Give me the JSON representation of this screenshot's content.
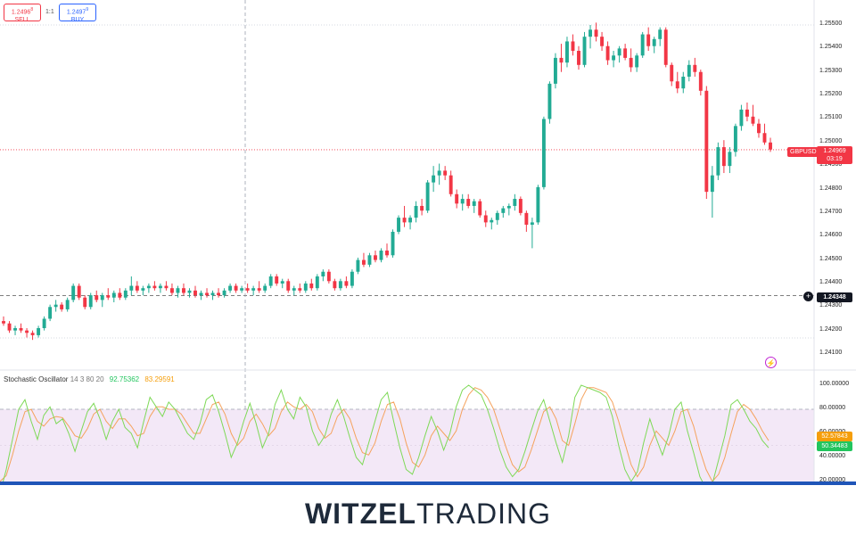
{
  "trade": {
    "sell_price": "1.2496",
    "sell_sup": "8",
    "sell_label": "SELL",
    "ratio": "1:1",
    "buy_price": "1.2497",
    "buy_sup": "9",
    "buy_label": "BUY"
  },
  "price_axis": {
    "labels": [
      "1.25500",
      "1.25400",
      "1.25300",
      "1.25200",
      "1.25100",
      "1.25000",
      "1.24900",
      "1.24800",
      "1.24700",
      "1.24600",
      "1.24500",
      "1.24400",
      "1.24300",
      "1.24200",
      "1.24100"
    ],
    "symbol": "GBPUSD",
    "current_price": "1.24969",
    "countdown": "03:19",
    "crosshair_price": "1.24348",
    "add_symbol": "+"
  },
  "stochastic": {
    "title": "Stochastic Oscillator",
    "params": "14 3 80 20",
    "k_value": "92.75362",
    "d_value": "83.29591",
    "axis_labels": [
      "100.00000",
      "80.00000",
      "60.00000",
      "40.00000",
      "20.00000"
    ],
    "tag_k": "52.57843",
    "tag_d": "50.34483"
  },
  "colors": {
    "up": "#22ab94",
    "down": "#f23645",
    "k_line": "#7ed957",
    "d_line": "#f5a25d",
    "band": "#f3e8f7",
    "accent": "#1f55b8"
  },
  "icons": {
    "lightning": "lightning-icon",
    "plus": "plus-icon"
  },
  "footer": {
    "brand_bold": "WITZEL",
    "brand_light": "TRADING"
  },
  "chart_data": {
    "type": "candlestick",
    "ylim": [
      1.2405,
      1.2555
    ],
    "candles": [
      [
        1.2424,
        1.2426,
        1.2422,
        1.2423
      ],
      [
        1.2423,
        1.2424,
        1.2419,
        1.242
      ],
      [
        1.242,
        1.2422,
        1.2418,
        1.2421
      ],
      [
        1.2421,
        1.2423,
        1.2419,
        1.242
      ],
      [
        1.242,
        1.2421,
        1.2417,
        1.2419
      ],
      [
        1.2419,
        1.242,
        1.2416,
        1.2418
      ],
      [
        1.2418,
        1.2422,
        1.2417,
        1.2421
      ],
      [
        1.2421,
        1.2426,
        1.242,
        1.2425
      ],
      [
        1.2425,
        1.2431,
        1.2424,
        1.243
      ],
      [
        1.243,
        1.2433,
        1.2428,
        1.2431
      ],
      [
        1.2431,
        1.2432,
        1.2428,
        1.2429
      ],
      [
        1.2429,
        1.2434,
        1.2428,
        1.2433
      ],
      [
        1.2433,
        1.244,
        1.2432,
        1.2439
      ],
      [
        1.2439,
        1.244,
        1.2433,
        1.2434
      ],
      [
        1.2434,
        1.2435,
        1.2429,
        1.243
      ],
      [
        1.243,
        1.2436,
        1.2429,
        1.2435
      ],
      [
        1.2435,
        1.2437,
        1.2432,
        1.2433
      ],
      [
        1.2433,
        1.2436,
        1.243,
        1.2435
      ],
      [
        1.2435,
        1.2438,
        1.2433,
        1.2434
      ],
      [
        1.2434,
        1.2437,
        1.2432,
        1.2436
      ],
      [
        1.2436,
        1.2438,
        1.2433,
        1.2434
      ],
      [
        1.2434,
        1.2438,
        1.2433,
        1.2437
      ],
      [
        1.2437,
        1.2443,
        1.2435,
        1.2439
      ],
      [
        1.2439,
        1.2441,
        1.2436,
        1.2437
      ],
      [
        1.2437,
        1.2439,
        1.2435,
        1.2438
      ],
      [
        1.2438,
        1.244,
        1.2436,
        1.2439
      ],
      [
        1.2439,
        1.2441,
        1.2437,
        1.2438
      ],
      [
        1.2438,
        1.244,
        1.2436,
        1.2439
      ],
      [
        1.2439,
        1.2441,
        1.2437,
        1.2438
      ],
      [
        1.2438,
        1.244,
        1.2435,
        1.2436
      ],
      [
        1.2436,
        1.2439,
        1.2434,
        1.2438
      ],
      [
        1.2438,
        1.244,
        1.2435,
        1.2436
      ],
      [
        1.2436,
        1.2438,
        1.2434,
        1.2437
      ],
      [
        1.2437,
        1.2439,
        1.2434,
        1.2435
      ],
      [
        1.2435,
        1.2437,
        1.2433,
        1.2436
      ],
      [
        1.2436,
        1.2438,
        1.2434,
        1.2435
      ],
      [
        1.2435,
        1.2437,
        1.2433,
        1.2436
      ],
      [
        1.2436,
        1.2438,
        1.2434,
        1.2435
      ],
      [
        1.2435,
        1.2438,
        1.2434,
        1.2437
      ],
      [
        1.2437,
        1.244,
        1.2436,
        1.2439
      ],
      [
        1.2439,
        1.244,
        1.2436,
        1.2437
      ],
      [
        1.2437,
        1.2439,
        1.2436,
        1.2438
      ],
      [
        1.2438,
        1.244,
        1.2436,
        1.2437
      ],
      [
        1.2437,
        1.2439,
        1.2435,
        1.2438
      ],
      [
        1.2438,
        1.2441,
        1.2436,
        1.2437
      ],
      [
        1.2437,
        1.244,
        1.2436,
        1.2439
      ],
      [
        1.2439,
        1.2444,
        1.2438,
        1.2443
      ],
      [
        1.2443,
        1.2444,
        1.2439,
        1.244
      ],
      [
        1.244,
        1.2442,
        1.2438,
        1.2441
      ],
      [
        1.2441,
        1.2442,
        1.2436,
        1.2437
      ],
      [
        1.2437,
        1.2439,
        1.2435,
        1.2438
      ],
      [
        1.2438,
        1.244,
        1.2436,
        1.2437
      ],
      [
        1.2437,
        1.2441,
        1.2436,
        1.244
      ],
      [
        1.244,
        1.2442,
        1.2437,
        1.2438
      ],
      [
        1.2438,
        1.2444,
        1.2437,
        1.2443
      ],
      [
        1.2443,
        1.2446,
        1.2441,
        1.2445
      ],
      [
        1.2445,
        1.2446,
        1.244,
        1.2441
      ],
      [
        1.2441,
        1.2442,
        1.2437,
        1.2438
      ],
      [
        1.2438,
        1.2442,
        1.2437,
        1.2441
      ],
      [
        1.2441,
        1.2443,
        1.2438,
        1.2439
      ],
      [
        1.2439,
        1.2446,
        1.2438,
        1.2445
      ],
      [
        1.2445,
        1.2451,
        1.2444,
        1.245
      ],
      [
        1.245,
        1.2453,
        1.2447,
        1.2448
      ],
      [
        1.2448,
        1.2453,
        1.2447,
        1.2452
      ],
      [
        1.2452,
        1.2454,
        1.2449,
        1.245
      ],
      [
        1.245,
        1.2455,
        1.2449,
        1.2454
      ],
      [
        1.2454,
        1.2457,
        1.2451,
        1.2452
      ],
      [
        1.2452,
        1.2463,
        1.2451,
        1.2462
      ],
      [
        1.2462,
        1.2469,
        1.2461,
        1.2468
      ],
      [
        1.2468,
        1.2473,
        1.2464,
        1.2466
      ],
      [
        1.2466,
        1.2469,
        1.2463,
        1.2468
      ],
      [
        1.2468,
        1.2475,
        1.2466,
        1.2473
      ],
      [
        1.2473,
        1.2476,
        1.2469,
        1.2471
      ],
      [
        1.2471,
        1.2484,
        1.247,
        1.2483
      ],
      [
        1.2483,
        1.249,
        1.2479,
        1.2486
      ],
      [
        1.2486,
        1.2491,
        1.2482,
        1.2488
      ],
      [
        1.2488,
        1.249,
        1.2484,
        1.2486
      ],
      [
        1.2486,
        1.2488,
        1.2477,
        1.2478
      ],
      [
        1.2478,
        1.248,
        1.2472,
        1.2474
      ],
      [
        1.2474,
        1.2478,
        1.2471,
        1.2476
      ],
      [
        1.2476,
        1.2478,
        1.2472,
        1.2473
      ],
      [
        1.2473,
        1.2476,
        1.247,
        1.2475
      ],
      [
        1.2475,
        1.2476,
        1.2468,
        1.2469
      ],
      [
        1.2469,
        1.2471,
        1.2464,
        1.2466
      ],
      [
        1.2466,
        1.2468,
        1.2463,
        1.2467
      ],
      [
        1.2467,
        1.2471,
        1.2465,
        1.247
      ],
      [
        1.247,
        1.2473,
        1.2468,
        1.2472
      ],
      [
        1.2472,
        1.2474,
        1.2469,
        1.2473
      ],
      [
        1.2473,
        1.2478,
        1.2471,
        1.2476
      ],
      [
        1.2476,
        1.2477,
        1.2469,
        1.247
      ],
      [
        1.247,
        1.2471,
        1.2462,
        1.2465
      ],
      [
        1.2465,
        1.2468,
        1.2455,
        1.2466
      ],
      [
        1.2466,
        1.2482,
        1.2465,
        1.2481
      ],
      [
        1.2481,
        1.2511,
        1.248,
        1.251
      ],
      [
        1.251,
        1.2526,
        1.2508,
        1.2525
      ],
      [
        1.2525,
        1.2538,
        1.2523,
        1.2536
      ],
      [
        1.2536,
        1.2542,
        1.253,
        1.2534
      ],
      [
        1.2534,
        1.2545,
        1.2532,
        1.2543
      ],
      [
        1.2543,
        1.2546,
        1.2537,
        1.2539
      ],
      [
        1.2539,
        1.2541,
        1.2531,
        1.2533
      ],
      [
        1.2533,
        1.2547,
        1.2532,
        1.2545
      ],
      [
        1.2545,
        1.255,
        1.254,
        1.2548
      ],
      [
        1.2548,
        1.2551,
        1.2543,
        1.2545
      ],
      [
        1.2545,
        1.2547,
        1.2539,
        1.2541
      ],
      [
        1.2541,
        1.2543,
        1.2533,
        1.2535
      ],
      [
        1.2535,
        1.2539,
        1.2532,
        1.2537
      ],
      [
        1.2537,
        1.2541,
        1.2534,
        1.254
      ],
      [
        1.254,
        1.2542,
        1.2535,
        1.2536
      ],
      [
        1.2536,
        1.254,
        1.253,
        1.2532
      ],
      [
        1.2532,
        1.2538,
        1.253,
        1.2537
      ],
      [
        1.2537,
        1.2547,
        1.2536,
        1.2546
      ],
      [
        1.2546,
        1.2549,
        1.2539,
        1.2541
      ],
      [
        1.2541,
        1.2545,
        1.2538,
        1.2544
      ],
      [
        1.2544,
        1.2549,
        1.2541,
        1.2548
      ],
      [
        1.2548,
        1.2549,
        1.2532,
        1.2533
      ],
      [
        1.2533,
        1.2534,
        1.2524,
        1.2526
      ],
      [
        1.2526,
        1.253,
        1.2521,
        1.2523
      ],
      [
        1.2523,
        1.253,
        1.2521,
        1.2528
      ],
      [
        1.2528,
        1.2535,
        1.2526,
        1.2533
      ],
      [
        1.2533,
        1.2536,
        1.2528,
        1.253
      ],
      [
        1.253,
        1.2531,
        1.252,
        1.2522
      ],
      [
        1.2522,
        1.2524,
        1.2476,
        1.2479
      ],
      [
        1.2479,
        1.249,
        1.2468,
        1.2486
      ],
      [
        1.2486,
        1.25,
        1.2484,
        1.2498
      ],
      [
        1.2498,
        1.2501,
        1.2487,
        1.249
      ],
      [
        1.249,
        1.2498,
        1.2487,
        1.2496
      ],
      [
        1.2496,
        1.2508,
        1.2494,
        1.2507
      ],
      [
        1.2507,
        1.2516,
        1.2505,
        1.2514
      ],
      [
        1.2514,
        1.2517,
        1.2509,
        1.2511
      ],
      [
        1.2511,
        1.2516,
        1.2507,
        1.2508
      ],
      [
        1.2508,
        1.251,
        1.2502,
        1.2504
      ],
      [
        1.2504,
        1.2508,
        1.2499,
        1.25
      ],
      [
        1.25,
        1.2502,
        1.2496,
        1.2497
      ]
    ],
    "stoch_k": [
      10,
      30,
      55,
      80,
      88,
      70,
      55,
      75,
      82,
      68,
      72,
      60,
      45,
      62,
      78,
      85,
      72,
      55,
      70,
      80,
      65,
      60,
      48,
      70,
      90,
      82,
      74,
      86,
      80,
      70,
      60,
      55,
      68,
      88,
      92,
      78,
      60,
      40,
      52,
      70,
      85,
      68,
      48,
      60,
      84,
      96,
      80,
      72,
      90,
      82,
      62,
      50,
      58,
      76,
      88,
      74,
      56,
      40,
      34,
      52,
      70,
      88,
      94,
      70,
      48,
      30,
      26,
      40,
      58,
      74,
      62,
      46,
      60,
      82,
      96,
      100,
      96,
      92,
      80,
      64,
      46,
      32,
      24,
      30,
      45,
      62,
      78,
      88,
      70,
      52,
      36,
      58,
      90,
      100,
      98,
      96,
      94,
      90,
      74,
      50,
      30,
      20,
      28,
      52,
      72,
      56,
      42,
      58,
      80,
      86,
      62,
      44,
      24,
      14,
      18,
      38,
      58,
      84,
      88,
      80,
      70,
      64,
      54,
      48
    ],
    "stoch_d": [
      20,
      25,
      42,
      62,
      78,
      80,
      70,
      66,
      72,
      74,
      73,
      66,
      58,
      56,
      64,
      76,
      80,
      70,
      64,
      72,
      72,
      66,
      58,
      60,
      74,
      82,
      82,
      80,
      80,
      76,
      68,
      60,
      60,
      72,
      84,
      86,
      76,
      60,
      50,
      56,
      70,
      76,
      68,
      58,
      64,
      78,
      86,
      82,
      80,
      84,
      78,
      64,
      56,
      60,
      74,
      80,
      72,
      56,
      44,
      42,
      52,
      70,
      84,
      86,
      72,
      52,
      36,
      32,
      42,
      58,
      66,
      60,
      54,
      62,
      80,
      92,
      98,
      96,
      90,
      80,
      64,
      48,
      34,
      28,
      32,
      46,
      62,
      78,
      82,
      72,
      54,
      50,
      68,
      88,
      98,
      98,
      96,
      94,
      86,
      70,
      52,
      34,
      24,
      32,
      50,
      62,
      56,
      50,
      62,
      78,
      80,
      66,
      46,
      30,
      20,
      26,
      40,
      60,
      78,
      84,
      80,
      72,
      62,
      54
    ]
  }
}
